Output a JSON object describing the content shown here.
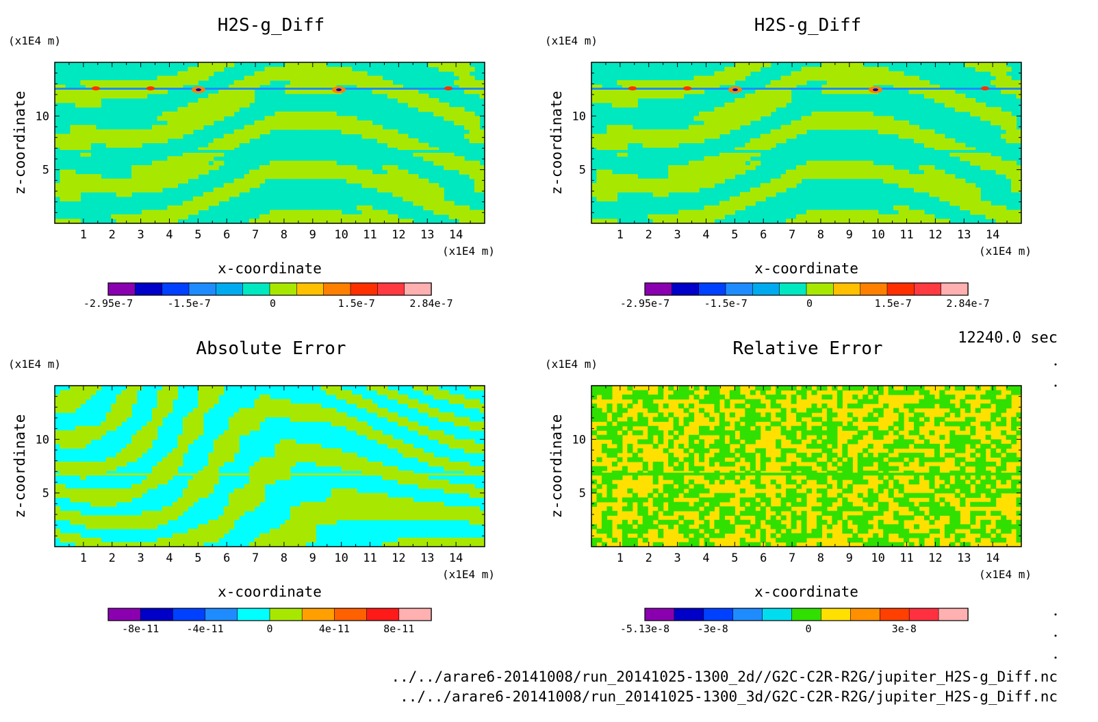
{
  "time_label": "12240.0 sec",
  "file_lines": [
    "../../arare6-20141008/run_20141025-1300_2d//G2C-C2R-R2G/jupiter_H2S-g_Diff.nc",
    "../../arare6-20141008/run_20141025-1300_3d/G2C-C2R-R2G/jupiter_H2S-g_Diff.nc"
  ],
  "chart_data": [
    {
      "type": "heatmap",
      "title": "H2S-g_Diff",
      "xlabel": "x-coordinate",
      "ylabel": "z-coordinate",
      "x_unit": "(x1E4 m)",
      "y_unit": "(x1E4 m)",
      "xlim": [
        0,
        15
      ],
      "ylim": [
        0,
        15
      ],
      "x_ticks": [
        "1",
        "2",
        "3",
        "4",
        "5",
        "6",
        "7",
        "8",
        "9",
        "10",
        "11",
        "12",
        "13",
        "14"
      ],
      "y_ticks": [
        "5",
        "10"
      ],
      "pattern": "swirl",
      "colorbar": {
        "range": [
          -2.95e-07,
          2.84e-07
        ],
        "labels": [
          "-2.95e-7",
          "-1.5e-7",
          "0",
          "1.5e-7",
          "2.84e-7"
        ],
        "colors": [
          "#8a00b0",
          "#0000c8",
          "#0040ff",
          "#1e8cff",
          "#00aaee",
          "#00e8c0",
          "#a8e800",
          "#ffc000",
          "#ff8000",
          "#ff3000",
          "#ff3a40",
          "#ffb0b0"
        ]
      }
    },
    {
      "type": "heatmap",
      "title": "H2S-g_Diff",
      "xlabel": "x-coordinate",
      "ylabel": "z-coordinate",
      "x_unit": "(x1E4 m)",
      "y_unit": "(x1E4 m)",
      "xlim": [
        0,
        15
      ],
      "ylim": [
        0,
        15
      ],
      "x_ticks": [
        "1",
        "2",
        "3",
        "4",
        "5",
        "6",
        "7",
        "8",
        "9",
        "10",
        "11",
        "12",
        "13",
        "14"
      ],
      "y_ticks": [
        "5",
        "10"
      ],
      "pattern": "swirl",
      "colorbar": {
        "range": [
          -2.95e-07,
          2.84e-07
        ],
        "labels": [
          "-2.95e-7",
          "-1.5e-7",
          "0",
          "1.5e-7",
          "2.84e-7"
        ],
        "colors": [
          "#8a00b0",
          "#0000c8",
          "#0040ff",
          "#1e8cff",
          "#00aaee",
          "#00e8c0",
          "#a8e800",
          "#ffc000",
          "#ff8000",
          "#ff3000",
          "#ff3a40",
          "#ffb0b0"
        ]
      }
    },
    {
      "type": "heatmap",
      "title": "Absolute Error",
      "xlabel": "x-coordinate",
      "ylabel": "z-coordinate",
      "x_unit": "(x1E4 m)",
      "y_unit": "(x1E4 m)",
      "xlim": [
        0,
        15
      ],
      "ylim": [
        0,
        15
      ],
      "x_ticks": [
        "1",
        "2",
        "3",
        "4",
        "5",
        "6",
        "7",
        "8",
        "9",
        "10",
        "11",
        "12",
        "13",
        "14"
      ],
      "y_ticks": [
        "5",
        "10"
      ],
      "pattern": "stripes",
      "colorbar": {
        "range": [
          -1e-10,
          1e-10
        ],
        "labels": [
          "-8e-11",
          "-4e-11",
          "0",
          "4e-11",
          "8e-11"
        ],
        "colors": [
          "#8a00b0",
          "#0000c8",
          "#0040ff",
          "#1e8cff",
          "#00ffff",
          "#a8e800",
          "#ffa000",
          "#ff6000",
          "#ff1a1a",
          "#ffb0b0"
        ]
      }
    },
    {
      "type": "heatmap",
      "title": "Relative Error",
      "xlabel": "x-coordinate",
      "ylabel": "z-coordinate",
      "x_unit": "(x1E4 m)",
      "y_unit": "(x1E4 m)",
      "xlim": [
        0,
        15
      ],
      "ylim": [
        0,
        15
      ],
      "x_ticks": [
        "1",
        "2",
        "3",
        "4",
        "5",
        "6",
        "7",
        "8",
        "9",
        "10",
        "11",
        "12",
        "13",
        "14"
      ],
      "y_ticks": [
        "5",
        "10"
      ],
      "pattern": "noise",
      "colorbar": {
        "range": [
          -5.13e-08,
          5e-08
        ],
        "labels": [
          "-5.13e-8",
          "-3e-8",
          "0",
          "3e-8"
        ],
        "colors": [
          "#8a00b0",
          "#0000c8",
          "#0040ff",
          "#1e8cff",
          "#00ddee",
          "#30e000",
          "#ffe000",
          "#ff9000",
          "#ff4000",
          "#ff3040",
          "#ffb0b0"
        ]
      }
    }
  ]
}
